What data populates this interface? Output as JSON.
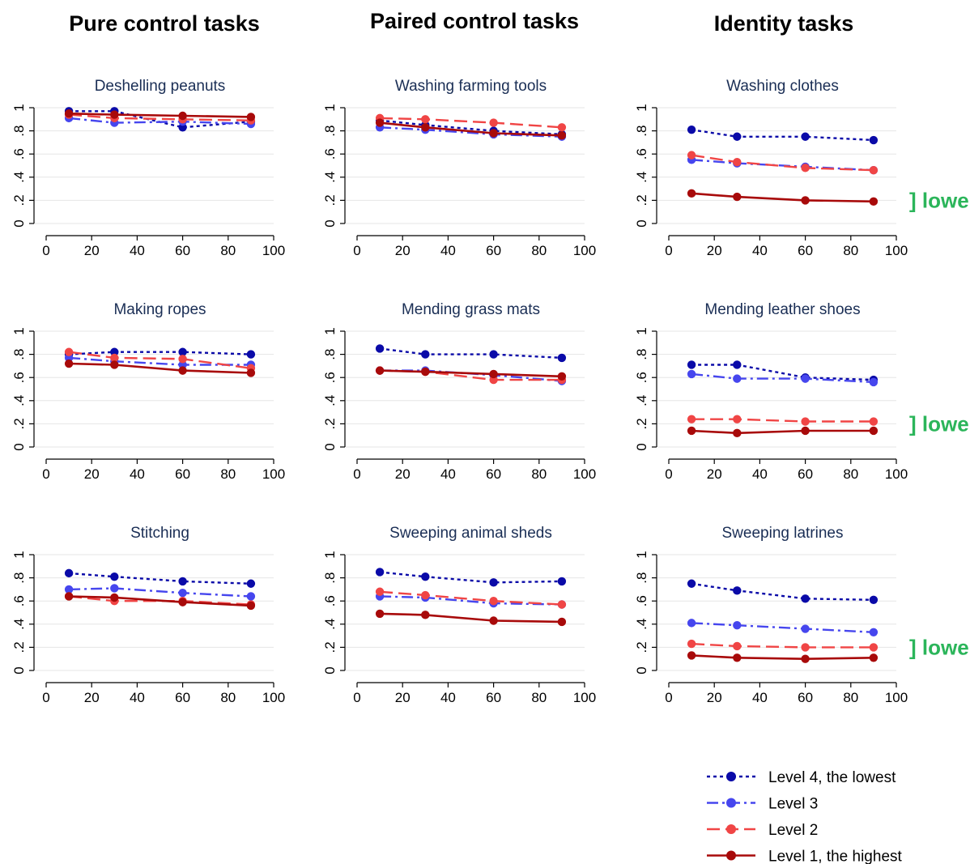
{
  "column_headers": [
    "Pure control tasks",
    "Paired control tasks",
    "Identity tasks"
  ],
  "colors": {
    "level4": "#0a0aa8",
    "level3": "#4646ee",
    "level2": "#f04545",
    "level1": "#a80a0a",
    "grid": "#e6e6e6",
    "annotation": "#2bb55a"
  },
  "legend": [
    {
      "key": "level4",
      "label": "Level 4, the lowest"
    },
    {
      "key": "level3",
      "label": "Level 3"
    },
    {
      "key": "level2",
      "label": "Level 2"
    },
    {
      "key": "level1",
      "label": "Level 1, the highest"
    }
  ],
  "chart_data": [
    {
      "type": "line",
      "title": "Deshelling peanuts",
      "x": [
        10,
        30,
        60,
        90
      ],
      "xticks": [
        "0",
        "20",
        "40",
        "60",
        "80",
        "100"
      ],
      "yticks": [
        "0",
        ".2",
        ".4",
        ".6",
        ".8",
        "1"
      ],
      "xlim": [
        0,
        100
      ],
      "ylim": [
        0,
        1
      ],
      "grid": true,
      "series": [
        {
          "key": "level4",
          "name": "Level 4, the lowest",
          "values": [
            0.97,
            0.97,
            0.83,
            0.88
          ]
        },
        {
          "key": "level3",
          "name": "Level 3",
          "values": [
            0.91,
            0.87,
            0.88,
            0.86
          ]
        },
        {
          "key": "level2",
          "name": "Level 2",
          "values": [
            0.94,
            0.91,
            0.9,
            0.89
          ]
        },
        {
          "key": "level1",
          "name": "Level 1, the highest",
          "values": [
            0.95,
            0.94,
            0.93,
            0.92
          ]
        }
      ]
    },
    {
      "type": "line",
      "title": "Washing farming tools",
      "x": [
        10,
        30,
        60,
        90
      ],
      "xticks": [
        "0",
        "20",
        "40",
        "60",
        "80",
        "100"
      ],
      "yticks": [
        "0",
        ".2",
        ".4",
        ".6",
        ".8",
        "1"
      ],
      "xlim": [
        0,
        100
      ],
      "ylim": [
        0,
        1
      ],
      "grid": true,
      "series": [
        {
          "key": "level4",
          "name": "Level 4, the lowest",
          "values": [
            0.89,
            0.85,
            0.8,
            0.77
          ]
        },
        {
          "key": "level3",
          "name": "Level 3",
          "values": [
            0.83,
            0.81,
            0.77,
            0.75
          ]
        },
        {
          "key": "level2",
          "name": "Level 2",
          "values": [
            0.91,
            0.9,
            0.87,
            0.83
          ]
        },
        {
          "key": "level1",
          "name": "Level 1, the highest",
          "values": [
            0.87,
            0.83,
            0.78,
            0.76
          ]
        }
      ]
    },
    {
      "type": "line",
      "title": "Washing clothes",
      "x": [
        10,
        30,
        60,
        90
      ],
      "xticks": [
        "0",
        "20",
        "40",
        "60",
        "80",
        "100"
      ],
      "yticks": [
        "0",
        ".2",
        ".4",
        ".6",
        ".8",
        "1"
      ],
      "xlim": [
        0,
        100
      ],
      "ylim": [
        0,
        1
      ],
      "grid": true,
      "annotation": "] lower",
      "series": [
        {
          "key": "level4",
          "name": "Level 4, the lowest",
          "values": [
            0.81,
            0.75,
            0.75,
            0.72
          ]
        },
        {
          "key": "level3",
          "name": "Level 3",
          "values": [
            0.55,
            0.52,
            0.49,
            0.46
          ]
        },
        {
          "key": "level2",
          "name": "Level 2",
          "values": [
            0.59,
            0.53,
            0.48,
            0.46
          ]
        },
        {
          "key": "level1",
          "name": "Level 1, the highest",
          "values": [
            0.26,
            0.23,
            0.2,
            0.19
          ]
        }
      ]
    },
    {
      "type": "line",
      "title": "Making ropes",
      "x": [
        10,
        30,
        60,
        90
      ],
      "xticks": [
        "0",
        "20",
        "40",
        "60",
        "80",
        "100"
      ],
      "yticks": [
        "0",
        ".2",
        ".4",
        ".6",
        ".8",
        "1"
      ],
      "xlim": [
        0,
        100
      ],
      "ylim": [
        0,
        1
      ],
      "grid": true,
      "series": [
        {
          "key": "level4",
          "name": "Level 4, the lowest",
          "values": [
            0.8,
            0.82,
            0.82,
            0.8
          ]
        },
        {
          "key": "level3",
          "name": "Level 3",
          "values": [
            0.77,
            0.74,
            0.71,
            0.71
          ]
        },
        {
          "key": "level2",
          "name": "Level 2",
          "values": [
            0.82,
            0.77,
            0.76,
            0.68
          ]
        },
        {
          "key": "level1",
          "name": "Level 1, the highest",
          "values": [
            0.72,
            0.71,
            0.66,
            0.64
          ]
        }
      ]
    },
    {
      "type": "line",
      "title": "Mending grass mats",
      "x": [
        10,
        30,
        60,
        90
      ],
      "xticks": [
        "0",
        "20",
        "40",
        "60",
        "80",
        "100"
      ],
      "yticks": [
        "0",
        ".2",
        ".4",
        ".6",
        ".8",
        "1"
      ],
      "xlim": [
        0,
        100
      ],
      "ylim": [
        0,
        1
      ],
      "grid": true,
      "series": [
        {
          "key": "level4",
          "name": "Level 4, the lowest",
          "values": [
            0.85,
            0.8,
            0.8,
            0.77
          ]
        },
        {
          "key": "level3",
          "name": "Level 3",
          "values": [
            0.66,
            0.66,
            0.62,
            0.57
          ]
        },
        {
          "key": "level2",
          "name": "Level 2",
          "values": [
            0.66,
            0.65,
            0.58,
            0.58
          ]
        },
        {
          "key": "level1",
          "name": "Level 1, the highest",
          "values": [
            0.66,
            0.65,
            0.63,
            0.61
          ]
        }
      ]
    },
    {
      "type": "line",
      "title": "Mending leather shoes",
      "x": [
        10,
        30,
        60,
        90
      ],
      "xticks": [
        "0",
        "20",
        "40",
        "60",
        "80",
        "100"
      ],
      "yticks": [
        "0",
        ".2",
        ".4",
        ".6",
        ".8",
        "1"
      ],
      "xlim": [
        0,
        100
      ],
      "ylim": [
        0,
        1
      ],
      "grid": true,
      "annotation": "] lower",
      "series": [
        {
          "key": "level4",
          "name": "Level 4, the lowest",
          "values": [
            0.71,
            0.71,
            0.6,
            0.58
          ]
        },
        {
          "key": "level3",
          "name": "Level 3",
          "values": [
            0.63,
            0.59,
            0.59,
            0.56
          ]
        },
        {
          "key": "level2",
          "name": "Level 2",
          "values": [
            0.24,
            0.24,
            0.22,
            0.22
          ]
        },
        {
          "key": "level1",
          "name": "Level 1, the highest",
          "values": [
            0.14,
            0.12,
            0.14,
            0.14
          ]
        }
      ]
    },
    {
      "type": "line",
      "title": "Stitching",
      "x": [
        10,
        30,
        60,
        90
      ],
      "xticks": [
        "0",
        "20",
        "40",
        "60",
        "80",
        "100"
      ],
      "yticks": [
        "0",
        ".2",
        ".4",
        ".6",
        ".8",
        "1"
      ],
      "xlim": [
        0,
        100
      ],
      "ylim": [
        0,
        1
      ],
      "grid": true,
      "series": [
        {
          "key": "level4",
          "name": "Level 4, the lowest",
          "values": [
            0.84,
            0.81,
            0.77,
            0.75
          ]
        },
        {
          "key": "level3",
          "name": "Level 3",
          "values": [
            0.7,
            0.71,
            0.67,
            0.64
          ]
        },
        {
          "key": "level2",
          "name": "Level 2",
          "values": [
            0.64,
            0.6,
            0.6,
            0.57
          ]
        },
        {
          "key": "level1",
          "name": "Level 1, the highest",
          "values": [
            0.64,
            0.63,
            0.59,
            0.56
          ]
        }
      ]
    },
    {
      "type": "line",
      "title": "Sweeping animal sheds",
      "x": [
        10,
        30,
        60,
        90
      ],
      "xticks": [
        "0",
        "20",
        "40",
        "60",
        "80",
        "100"
      ],
      "yticks": [
        "0",
        ".2",
        ".4",
        ".6",
        ".8",
        "1"
      ],
      "xlim": [
        0,
        100
      ],
      "ylim": [
        0,
        1
      ],
      "grid": true,
      "series": [
        {
          "key": "level4",
          "name": "Level 4, the lowest",
          "values": [
            0.85,
            0.81,
            0.76,
            0.77
          ]
        },
        {
          "key": "level3",
          "name": "Level 3",
          "values": [
            0.64,
            0.63,
            0.58,
            0.57
          ]
        },
        {
          "key": "level2",
          "name": "Level 2",
          "values": [
            0.68,
            0.65,
            0.6,
            0.57
          ]
        },
        {
          "key": "level1",
          "name": "Level 1, the highest",
          "values": [
            0.49,
            0.48,
            0.43,
            0.42
          ]
        }
      ]
    },
    {
      "type": "line",
      "title": "Sweeping latrines",
      "x": [
        10,
        30,
        60,
        90
      ],
      "xticks": [
        "0",
        "20",
        "40",
        "60",
        "80",
        "100"
      ],
      "yticks": [
        "0",
        ".2",
        ".4",
        ".6",
        ".8",
        "1"
      ],
      "xlim": [
        0,
        100
      ],
      "ylim": [
        0,
        1
      ],
      "grid": true,
      "annotation": "] lower",
      "series": [
        {
          "key": "level4",
          "name": "Level 4, the lowest",
          "values": [
            0.75,
            0.69,
            0.62,
            0.61
          ]
        },
        {
          "key": "level3",
          "name": "Level 3",
          "values": [
            0.41,
            0.39,
            0.36,
            0.33
          ]
        },
        {
          "key": "level2",
          "name": "Level 2",
          "values": [
            0.23,
            0.21,
            0.2,
            0.2
          ]
        },
        {
          "key": "level1",
          "name": "Level 1, the highest",
          "values": [
            0.13,
            0.11,
            0.1,
            0.11
          ]
        }
      ]
    }
  ]
}
